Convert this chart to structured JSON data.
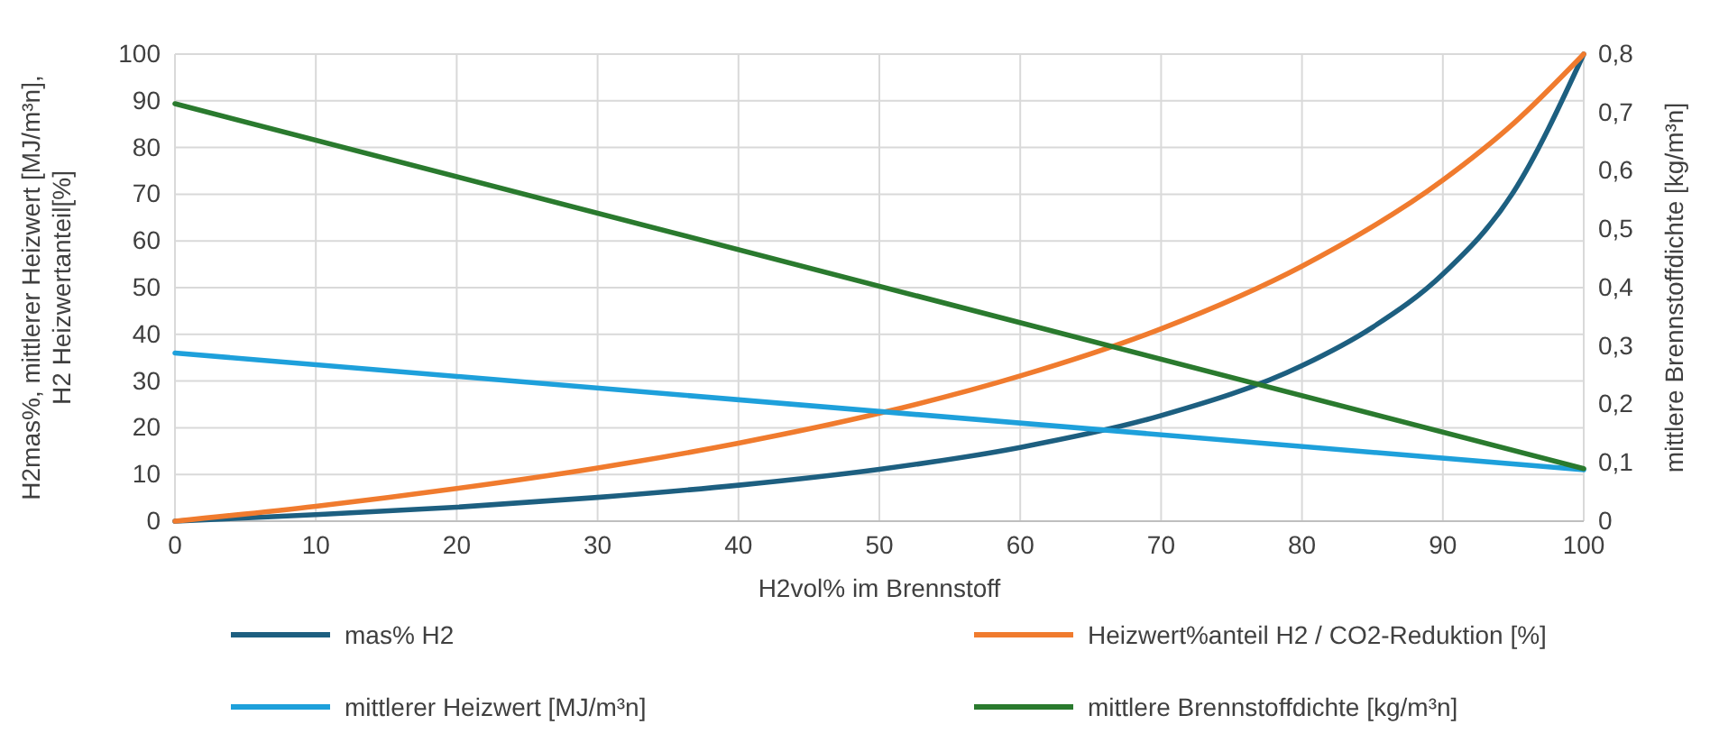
{
  "chart_data": {
    "type": "line",
    "xlabel": "H2vol% im Brennstoff",
    "ylabel": "H2mas%, mittlerer Heizwert [MJ/m³n],\nH2 Heizwertanteil[%]",
    "y2label": "mittlere Brennstoffdichte [kg/m³n]",
    "xlim": [
      0,
      100
    ],
    "xticks": [
      0,
      10,
      20,
      30,
      40,
      50,
      60,
      70,
      80,
      90,
      100
    ],
    "ylim": [
      0,
      100
    ],
    "yticks": [
      0,
      10,
      20,
      30,
      40,
      50,
      60,
      70,
      80,
      90,
      100
    ],
    "y2lim": [
      0,
      0.8
    ],
    "y2ticks": [
      {
        "value": 0,
        "label": "0"
      },
      {
        "value": 0.1,
        "label": "0,1"
      },
      {
        "value": 0.2,
        "label": "0,2"
      },
      {
        "value": 0.3,
        "label": "0,3"
      },
      {
        "value": 0.4,
        "label": "0,4"
      },
      {
        "value": 0.5,
        "label": "0,5"
      },
      {
        "value": 0.6,
        "label": "0,6"
      },
      {
        "value": 0.7,
        "label": "0,7"
      },
      {
        "value": 0.8,
        "label": "0,8"
      }
    ],
    "grid": true,
    "legend": "bottom",
    "marker": "none",
    "line_style": "solid",
    "series": [
      {
        "name": "mas% H2",
        "color": "#1d5f80",
        "x": [
          0,
          10,
          20,
          30,
          40,
          50,
          60,
          70,
          80,
          85,
          90,
          95,
          100
        ],
        "values": [
          0,
          1.4,
          3,
          5.1,
          7.7,
          11.1,
          15.8,
          22.6,
          33.3,
          41.5,
          52.9,
          70.4,
          100
        ]
      },
      {
        "name": "Heizwert%anteil H2 / CO2-Reduktion [%]",
        "color": "#f07b2e",
        "x": [
          0,
          10,
          20,
          30,
          40,
          50,
          60,
          70,
          80,
          90,
          95,
          100
        ],
        "values": [
          0,
          3.2,
          7,
          11.4,
          16.7,
          23.1,
          31.1,
          41.2,
          54.6,
          73,
          85.1,
          100
        ]
      },
      {
        "name": "mittlerer Heizwert [MJ/m³n]",
        "color": "#1ea0db",
        "x": [
          0,
          100
        ],
        "values": [
          36,
          11
        ]
      },
      {
        "name": "mittlere Brennstoffdichte [kg/m³n]",
        "color": "#2a7a2e",
        "axis": "y2",
        "x": [
          0,
          100
        ],
        "values": [
          0.715,
          0.09
        ]
      }
    ]
  }
}
